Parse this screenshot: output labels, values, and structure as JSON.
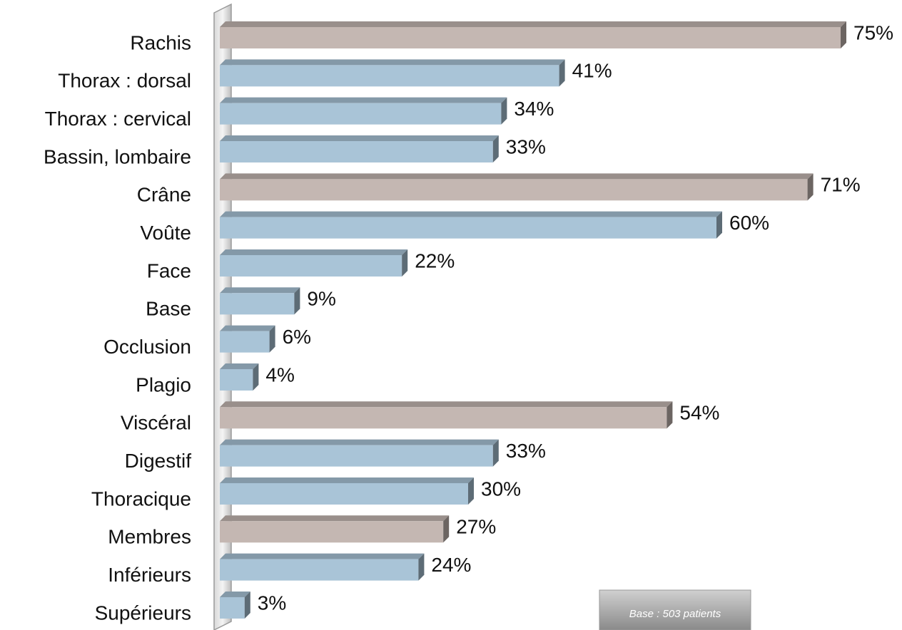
{
  "chart_data": {
    "type": "bar",
    "orientation": "horizontal",
    "categories": [
      "Rachis",
      "Thorax : dorsal",
      "Thorax : cervical",
      "Bassin, lombaire",
      "Crâne",
      "Voûte",
      "Face",
      "Base",
      "Occlusion",
      "Plagio",
      "Viscéral",
      "Digestif",
      "Thoracique",
      "Membres",
      "Inférieurs",
      "Supérieurs"
    ],
    "values": [
      75,
      41,
      34,
      33,
      71,
      60,
      22,
      9,
      6,
      4,
      54,
      33,
      30,
      27,
      24,
      3
    ],
    "value_labels": [
      "75%",
      "41%",
      "34%",
      "33%",
      "71%",
      "60%",
      "22%",
      "9%",
      "6%",
      "4%",
      "54%",
      "33%",
      "30%",
      "27%",
      "24%",
      "3%"
    ],
    "colors": [
      "#c4b7b2",
      "#a9c4d7",
      "#a9c4d7",
      "#a9c4d7",
      "#c4b7b2",
      "#a9c4d7",
      "#a9c4d7",
      "#a9c4d7",
      "#a9c4d7",
      "#a9c4d7",
      "#c4b7b2",
      "#a9c4d7",
      "#a9c4d7",
      "#c4b7b2",
      "#a9c4d7",
      "#a9c4d7"
    ],
    "annotation": "Base : 503 patients"
  }
}
